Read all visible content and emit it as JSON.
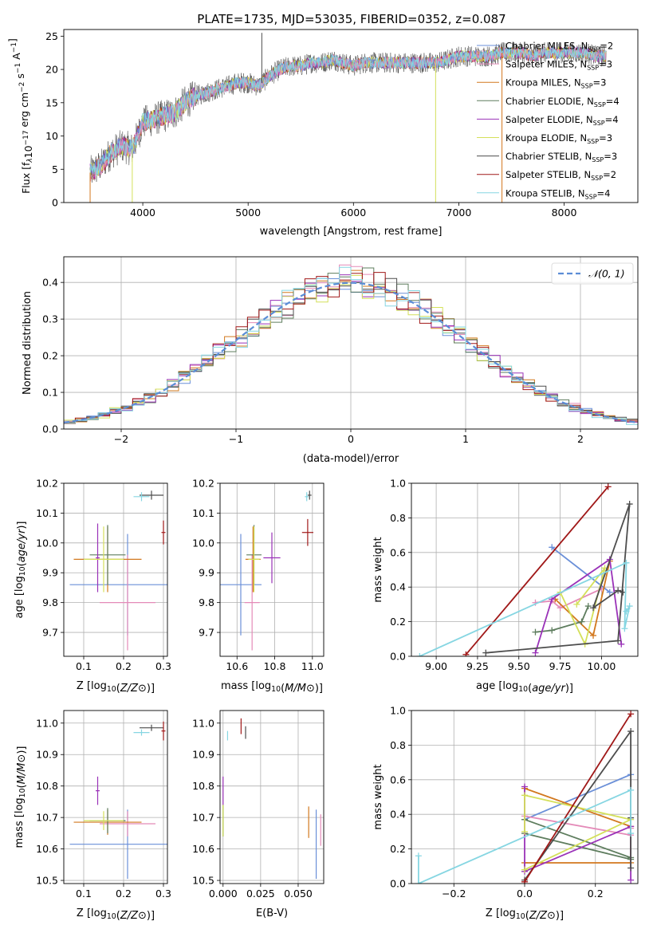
{
  "figure_title": "PLATE=1735, MJD=53035, FIBERID=0352, z=0.087",
  "colors": {
    "Chabrier MILES": "#6a8fd8",
    "Salpeter MILES": "#e48ab8",
    "Kroupa MILES": "#d2781e",
    "Chabrier ELODIE": "#5e7d5e",
    "Salpeter ELODIE": "#9a32b8",
    "Kroupa ELODIE": "#d4e05a",
    "Chabrier STELIB": "#4d4d4d",
    "Salpeter STELIB": "#a01818",
    "Kroupa STELIB": "#86d6e2",
    "gauss": "#5b8dd6"
  },
  "legend_panel1": [
    {
      "name": "Chabrier MILES",
      "nssp": "2"
    },
    {
      "name": "Salpeter MILES",
      "nssp": "3"
    },
    {
      "name": "Kroupa MILES",
      "nssp": "3"
    },
    {
      "name": "Chabrier ELODIE",
      "nssp": "4"
    },
    {
      "name": "Salpeter ELODIE",
      "nssp": "4"
    },
    {
      "name": "Kroupa ELODIE",
      "nssp": "3"
    },
    {
      "name": "Chabrier STELIB",
      "nssp": "3"
    },
    {
      "name": "Salpeter STELIB",
      "nssp": "2"
    },
    {
      "name": "Kroupa STELIB",
      "nssp": "4"
    }
  ],
  "chart_data": [
    {
      "id": "spectrum",
      "type": "line",
      "xlabel": "wavelength [Angstrom, rest frame]",
      "ylabel": "Flux [f_λ 10^-17 erg cm^-2 s^-1 A^-1]",
      "xlim": [
        3250,
        8700
      ],
      "ylim": [
        0,
        26
      ],
      "xticks": [
        4000,
        5000,
        6000,
        7000,
        8000
      ],
      "yticks": [
        0,
        5,
        10,
        15,
        20,
        25
      ],
      "grid": false,
      "legend": "right",
      "continuum": {
        "x": [
          3500,
          3600,
          3700,
          3800,
          3900,
          4000,
          4100,
          4200,
          4300,
          4400,
          4500,
          4600,
          4700,
          4800,
          4900,
          5000,
          5100,
          5200,
          5300,
          5400,
          5500,
          5600,
          5700,
          5800,
          5900,
          6000,
          6100,
          6200,
          6300,
          6400,
          6500,
          6600,
          6700,
          6800,
          6900,
          7000,
          7100,
          7200,
          7300,
          7400,
          7500,
          7600,
          7700,
          7800,
          7900,
          8000,
          8100,
          8200,
          8300,
          8400
        ],
        "y": [
          4.5,
          5.5,
          7.5,
          8.5,
          8.0,
          12.0,
          12.5,
          13.0,
          13.5,
          15.0,
          16.0,
          16.5,
          17.0,
          17.5,
          18.0,
          18.0,
          17.5,
          19.0,
          20.0,
          20.5,
          20.5,
          21.0,
          21.0,
          21.5,
          21.0,
          20.5,
          21.0,
          21.0,
          21.0,
          21.0,
          21.0,
          21.0,
          21.0,
          21.0,
          21.5,
          22.0,
          22.0,
          22.0,
          22.0,
          22.5,
          22.5,
          22.5,
          22.0,
          22.5,
          22.5,
          22.5,
          22.5,
          22.5,
          22.0,
          22.0
        ]
      },
      "features": [
        {
          "x": 5130,
          "y": 25.5,
          "series": "Chabrier STELIB"
        },
        {
          "x": 6780,
          "y": 0.0,
          "series": "Kroupa ELODIE"
        },
        {
          "x": 7410,
          "y": 0.0,
          "series": "Kroupa MILES"
        },
        {
          "x": 3500,
          "y": 0.0,
          "series": "Kroupa MILES"
        },
        {
          "x": 3900,
          "y": 0.0,
          "series": "Kroupa ELODIE"
        }
      ]
    },
    {
      "id": "residuals",
      "type": "step",
      "xlabel": "(data-model)/error",
      "ylabel": "Normed distribution",
      "xlim": [
        -2.5,
        2.5
      ],
      "ylim": [
        0,
        0.47
      ],
      "xticks": [
        -2,
        -1,
        0,
        1,
        2
      ],
      "yticks": [
        0.0,
        0.1,
        0.2,
        0.3,
        0.4
      ],
      "grid": true,
      "legend": "top-right",
      "bin_width": 0.1,
      "gauss_label": "𝒩(0, 1)",
      "gauss_mu": 0,
      "gauss_sigma": 1
    },
    {
      "id": "age_vs_z",
      "type": "errorbar",
      "xlabel": "Z [log10(Z/Z⊙)]",
      "ylabel": "age [log10(age/yr)]",
      "xlim": [
        0.05,
        0.31
      ],
      "ylim": [
        9.62,
        10.2
      ],
      "xticks": [
        0.1,
        0.2,
        0.3
      ],
      "yticks": [
        9.7,
        9.8,
        9.9,
        10.0,
        10.1,
        10.2
      ],
      "grid": true,
      "points": [
        {
          "series": "Chabrier MILES",
          "x": 0.21,
          "xerr": 0.145,
          "y": 9.86,
          "yerr": 0.17
        },
        {
          "series": "Salpeter MILES",
          "x": 0.21,
          "xerr": 0.07,
          "y": 9.8,
          "yerr": 0.16
        },
        {
          "series": "Kroupa MILES",
          "x": 0.16,
          "xerr": 0.085,
          "y": 9.945,
          "yerr": 0.11
        },
        {
          "series": "Chabrier ELODIE",
          "x": 0.16,
          "xerr": 0.045,
          "y": 9.96,
          "yerr": 0.1
        },
        {
          "series": "Salpeter ELODIE",
          "x": 0.135,
          "xerr": 0.005,
          "y": 9.95,
          "yerr": 0.115
        },
        {
          "series": "Kroupa ELODIE",
          "x": 0.15,
          "xerr": 0.05,
          "y": 9.945,
          "yerr": 0.11
        },
        {
          "series": "Chabrier STELIB",
          "x": 0.27,
          "xerr": 0.03,
          "y": 10.16,
          "yerr": 0.015
        },
        {
          "series": "Salpeter STELIB",
          "x": 0.3,
          "xerr": 0.005,
          "y": 10.035,
          "yerr": 0.04
        },
        {
          "series": "Kroupa STELIB",
          "x": 0.245,
          "xerr": 0.02,
          "y": 10.155,
          "yerr": 0.015
        }
      ]
    },
    {
      "id": "age_vs_mass",
      "type": "errorbar",
      "xlabel": "mass [log10(M/M⊙)]",
      "ylabel": "",
      "xlim": [
        10.51,
        11.06
      ],
      "ylim": [
        9.62,
        10.2
      ],
      "xticks": [
        10.6,
        10.8,
        11.0
      ],
      "yticks": [
        9.7,
        9.8,
        9.9,
        10.0,
        10.1,
        10.2
      ],
      "grid": true,
      "points": [
        {
          "series": "Chabrier MILES",
          "x": 10.62,
          "xerr": 0.11,
          "y": 9.86,
          "yerr": 0.17
        },
        {
          "series": "Salpeter MILES",
          "x": 10.68,
          "xerr": 0.04,
          "y": 9.8,
          "yerr": 0.16
        },
        {
          "series": "Kroupa MILES",
          "x": 10.685,
          "xerr": 0.04,
          "y": 9.945,
          "yerr": 0.11
        },
        {
          "series": "Chabrier ELODIE",
          "x": 10.69,
          "xerr": 0.04,
          "y": 9.96,
          "yerr": 0.1
        },
        {
          "series": "Salpeter ELODIE",
          "x": 10.785,
          "xerr": 0.045,
          "y": 9.95,
          "yerr": 0.085
        },
        {
          "series": "Kroupa ELODIE",
          "x": 10.69,
          "xerr": 0.03,
          "y": 9.945,
          "yerr": 0.11
        },
        {
          "series": "Chabrier STELIB",
          "x": 10.985,
          "xerr": 0.01,
          "y": 10.16,
          "yerr": 0.015
        },
        {
          "series": "Salpeter STELIB",
          "x": 10.975,
          "xerr": 0.03,
          "y": 10.035,
          "yerr": 0.045
        },
        {
          "series": "Kroupa STELIB",
          "x": 10.97,
          "xerr": 0.01,
          "y": 10.155,
          "yerr": 0.015
        }
      ]
    },
    {
      "id": "weight_vs_age",
      "type": "line",
      "xlabel": "age [log10(age/yr)]",
      "ylabel": "mass weight",
      "xlim": [
        8.85,
        10.22
      ],
      "ylim": [
        0,
        1.0
      ],
      "xticks": [
        9.0,
        9.25,
        9.5,
        9.75,
        10.0
      ],
      "yticks": [
        0.0,
        0.2,
        0.4,
        0.6,
        0.8,
        1.0
      ],
      "grid": true,
      "series": [
        {
          "series": "Chabrier MILES",
          "x": [
            9.7,
            10.05
          ],
          "y": [
            0.63,
            0.37
          ]
        },
        {
          "series": "Salpeter MILES",
          "x": [
            9.6,
            9.7,
            9.75,
            10.0
          ],
          "y": [
            0.31,
            0.32,
            0.28,
            0.39
          ]
        },
        {
          "series": "Kroupa MILES",
          "x": [
            9.72,
            9.95,
            10.05
          ],
          "y": [
            0.33,
            0.12,
            0.55
          ]
        },
        {
          "series": "Chabrier ELODIE",
          "x": [
            9.6,
            9.7,
            9.88,
            9.92
          ],
          "y": [
            0.14,
            0.15,
            0.2,
            0.29
          ]
        },
        {
          "series": "Salpeter ELODIE",
          "x": [
            9.6,
            9.7,
            10.05,
            10.12
          ],
          "y": [
            0.02,
            0.33,
            0.56,
            0.07
          ]
        },
        {
          "series": "Kroupa ELODIE",
          "x": [
            9.75,
            9.9,
            10.02,
            9.85
          ],
          "y": [
            0.37,
            0.07,
            0.51,
            0.3
          ]
        },
        {
          "series": "Chabrier STELIB",
          "x": [
            9.3,
            10.1,
            10.17,
            9.95,
            10.1,
            10.13
          ],
          "y": [
            0.02,
            0.09,
            0.88,
            0.28,
            0.38,
            0.37
          ]
        },
        {
          "series": "Salpeter STELIB",
          "x": [
            9.18,
            10.04
          ],
          "y": [
            0.01,
            0.98
          ]
        },
        {
          "series": "Kroupa STELIB",
          "x": [
            8.9,
            10.15,
            10.14,
            10.17,
            10.15
          ],
          "y": [
            0.0,
            0.54,
            0.16,
            0.29,
            0.26
          ]
        }
      ]
    },
    {
      "id": "mass_vs_z",
      "type": "errorbar",
      "xlabel": "Z [log10(Z/Z⊙)]",
      "ylabel": "mass [log10(M/M⊙)]",
      "xlim": [
        0.05,
        0.31
      ],
      "ylim": [
        10.49,
        11.04
      ],
      "xticks": [
        0.1,
        0.2,
        0.3
      ],
      "yticks": [
        10.5,
        10.6,
        10.7,
        10.8,
        10.9,
        11.0
      ],
      "grid": true,
      "points": [
        {
          "series": "Chabrier MILES",
          "x": 0.21,
          "xerr": 0.145,
          "y": 10.615,
          "yerr": 0.11
        },
        {
          "series": "Salpeter MILES",
          "x": 0.21,
          "xerr": 0.07,
          "y": 10.68,
          "yerr": 0.04
        },
        {
          "series": "Kroupa MILES",
          "x": 0.16,
          "xerr": 0.085,
          "y": 10.685,
          "yerr": 0.04
        },
        {
          "series": "Chabrier ELODIE",
          "x": 0.16,
          "xerr": 0.045,
          "y": 10.69,
          "yerr": 0.04
        },
        {
          "series": "Salpeter ELODIE",
          "x": 0.135,
          "xerr": 0.005,
          "y": 10.785,
          "yerr": 0.045
        },
        {
          "series": "Kroupa ELODIE",
          "x": 0.15,
          "xerr": 0.05,
          "y": 10.69,
          "yerr": 0.03
        },
        {
          "series": "Chabrier STELIB",
          "x": 0.27,
          "xerr": 0.03,
          "y": 10.985,
          "yerr": 0.01
        },
        {
          "series": "Salpeter STELIB",
          "x": 0.3,
          "xerr": 0.005,
          "y": 10.975,
          "yerr": 0.03
        },
        {
          "series": "Kroupa STELIB",
          "x": 0.245,
          "xerr": 0.02,
          "y": 10.97,
          "yerr": 0.01
        }
      ]
    },
    {
      "id": "mass_vs_ebv",
      "type": "errorbar",
      "xlabel": "E(B-V)",
      "ylabel": "",
      "xlim": [
        -0.002,
        0.067
      ],
      "ylim": [
        10.49,
        11.04
      ],
      "xticks": [
        0.0,
        0.025,
        0.05
      ],
      "xticklabels": [
        "0.000",
        "0.025",
        "0.050"
      ],
      "yticks": [
        10.5,
        10.6,
        10.7,
        10.8,
        10.9,
        11.0
      ],
      "grid": true,
      "points": [
        {
          "series": "Chabrier MILES",
          "x": 0.062,
          "xerr": 0,
          "y": 10.615,
          "yerr": 0.11
        },
        {
          "series": "Salpeter MILES",
          "x": 0.065,
          "xerr": 0,
          "y": 10.66,
          "yerr": 0.05
        },
        {
          "series": "Kroupa MILES",
          "x": 0.057,
          "xerr": 0,
          "y": 10.685,
          "yerr": 0.05
        },
        {
          "series": "Chabrier ELODIE",
          "x": 0.0,
          "xerr": 0,
          "y": 10.69,
          "yerr": 0.05
        },
        {
          "series": "Salpeter ELODIE",
          "x": 0.0,
          "xerr": 0,
          "y": 10.785,
          "yerr": 0.045
        },
        {
          "series": "Kroupa ELODIE",
          "x": 0.0,
          "xerr": 0,
          "y": 10.69,
          "yerr": 0.05
        },
        {
          "series": "Chabrier STELIB",
          "x": 0.015,
          "xerr": 0,
          "y": 10.97,
          "yerr": 0.02
        },
        {
          "series": "Salpeter STELIB",
          "x": 0.012,
          "xerr": 0,
          "y": 10.99,
          "yerr": 0.025
        },
        {
          "series": "Kroupa STELIB",
          "x": 0.003,
          "xerr": 0,
          "y": 10.96,
          "yerr": 0.015
        }
      ]
    },
    {
      "id": "weight_vs_z",
      "type": "line",
      "xlabel": "Z [log10(Z/Z⊙)]",
      "ylabel": "mass weight",
      "xlim": [
        -0.32,
        0.32
      ],
      "ylim": [
        0,
        1.0
      ],
      "xticks": [
        -0.2,
        0.0,
        0.2
      ],
      "yticks": [
        0.0,
        0.2,
        0.4,
        0.6,
        0.8,
        1.0
      ],
      "grid": true,
      "series": [
        {
          "series": "Chabrier MILES",
          "x": [
            0.0,
            0.3
          ],
          "y": [
            0.37,
            0.63
          ]
        },
        {
          "series": "Salpeter MILES",
          "x": [
            0.0,
            0.3,
            0.3
          ],
          "y": [
            0.39,
            0.28,
            0.32
          ]
        },
        {
          "series": "Kroupa MILES",
          "x": [
            0.0,
            0.3,
            0.3,
            0.0
          ],
          "y": [
            0.55,
            0.33,
            0.12,
            0.12
          ]
        },
        {
          "series": "Chabrier ELODIE",
          "x": [
            0.0,
            0.3,
            0.3,
            0.0
          ],
          "y": [
            0.37,
            0.15,
            0.14,
            0.29
          ]
        },
        {
          "series": "Salpeter ELODIE",
          "x": [
            0.0,
            0.0,
            0.3,
            0.3
          ],
          "y": [
            0.56,
            0.07,
            0.33,
            0.02
          ]
        },
        {
          "series": "Kroupa ELODIE",
          "x": [
            0.0,
            0.3,
            0.0,
            0.0
          ],
          "y": [
            0.08,
            0.37,
            0.51,
            0.3
          ]
        },
        {
          "series": "Chabrier STELIB",
          "x": [
            0.0,
            0.3,
            0.3,
            0.3
          ],
          "y": [
            0.02,
            0.88,
            0.09,
            0.38
          ]
        },
        {
          "series": "Salpeter STELIB",
          "x": [
            0.0,
            0.3
          ],
          "y": [
            0.01,
            0.98
          ]
        },
        {
          "series": "Kroupa STELIB",
          "x": [
            -0.3,
            -0.3,
            0.3,
            0.3
          ],
          "y": [
            0.16,
            0.0,
            0.54,
            0.29
          ]
        }
      ]
    }
  ]
}
